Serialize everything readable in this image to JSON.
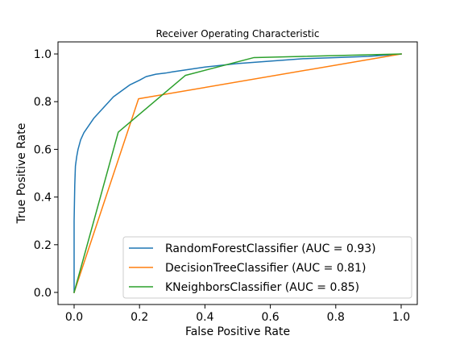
{
  "chart_data": {
    "type": "line",
    "title": "Receiver Operating Characteristic",
    "xlabel": "False Positive Rate",
    "ylabel": "True Positive Rate",
    "xlim": [
      0.0,
      1.0
    ],
    "ylim": [
      0.0,
      1.0
    ],
    "xticks": [
      "0.0",
      "0.2",
      "0.4",
      "0.6",
      "0.8",
      "1.0"
    ],
    "yticks": [
      "0.0",
      "0.2",
      "0.4",
      "0.6",
      "0.8",
      "1.0"
    ],
    "grid": false,
    "legend_position": "lower-right",
    "series": [
      {
        "name": "RandomForestClassifier (AUC = 0.93)",
        "color": "#1f77b4",
        "x": [
          0.0,
          0.0,
          0.002,
          0.004,
          0.008,
          0.012,
          0.02,
          0.03,
          0.045,
          0.06,
          0.08,
          0.1,
          0.12,
          0.15,
          0.17,
          0.2,
          0.22,
          0.25,
          0.28,
          0.3,
          0.35,
          0.4,
          0.5,
          0.6,
          0.7,
          0.8,
          0.9,
          1.0
        ],
        "y": [
          0.0,
          0.3,
          0.45,
          0.53,
          0.57,
          0.6,
          0.64,
          0.67,
          0.7,
          0.73,
          0.76,
          0.79,
          0.82,
          0.85,
          0.87,
          0.89,
          0.905,
          0.915,
          0.92,
          0.925,
          0.935,
          0.945,
          0.96,
          0.97,
          0.98,
          0.985,
          0.99,
          1.0
        ]
      },
      {
        "name": "DecisionTreeClassifier (AUC = 0.81)",
        "color": "#ff7f0e",
        "x": [
          0.0,
          0.197,
          1.0
        ],
        "y": [
          0.0,
          0.812,
          1.0
        ]
      },
      {
        "name": "KNeighborsClassifier (AUC = 0.85)",
        "color": "#2ca02c",
        "x": [
          0.0,
          0.135,
          0.34,
          0.55,
          1.0
        ],
        "y": [
          0.0,
          0.672,
          0.91,
          0.985,
          1.0
        ]
      }
    ]
  }
}
